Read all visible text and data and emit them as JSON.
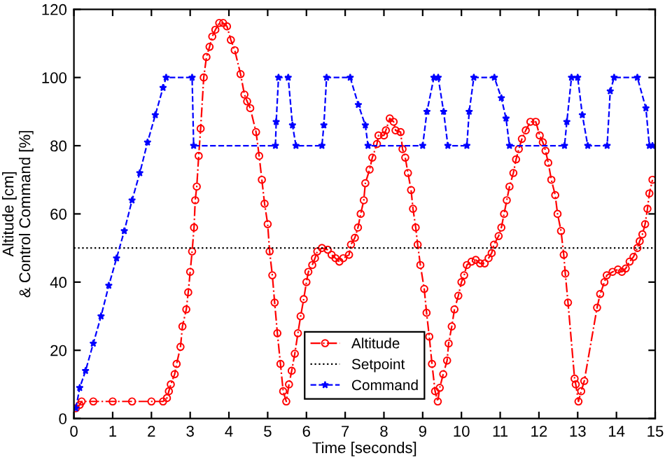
{
  "chart_data": {
    "type": "line",
    "xlabel": "Time [seconds]",
    "ylabel": "Altitude [cm]\n& Control Command [%]",
    "xlim": [
      0,
      15
    ],
    "xticks": [
      0,
      1,
      2,
      3,
      4,
      5,
      6,
      7,
      8,
      9,
      10,
      11,
      12,
      13,
      14,
      15
    ],
    "ylim": [
      0,
      120
    ],
    "yticks": [
      0,
      20,
      40,
      60,
      80,
      100,
      120
    ],
    "grid": false,
    "legend": "bottom",
    "series": [
      {
        "name": "Altitude",
        "color": "#ff0000",
        "marker": "circle",
        "line_style": "dashdot",
        "x": [
          0.05,
          0.15,
          0.2,
          0.5,
          1.0,
          1.5,
          2.0,
          2.3,
          2.4,
          2.45,
          2.5,
          2.6,
          2.65,
          2.75,
          2.8,
          2.9,
          2.95,
          3.0,
          3.05,
          3.1,
          3.13,
          3.17,
          3.22,
          3.27,
          3.35,
          3.42,
          3.5,
          3.57,
          3.65,
          3.75,
          3.85,
          3.95,
          4.05,
          4.15,
          4.3,
          4.4,
          4.47,
          4.55,
          4.7,
          4.78,
          4.85,
          4.92,
          5.0,
          5.05,
          5.12,
          5.18,
          5.25,
          5.33,
          5.4,
          5.48,
          5.55,
          5.62,
          5.7,
          5.78,
          5.85,
          5.93,
          6.0,
          6.05,
          6.15,
          6.22,
          6.28,
          6.4,
          6.55,
          6.65,
          6.75,
          6.85,
          6.95,
          7.1,
          7.15,
          7.25,
          7.33,
          7.4,
          7.48,
          7.52,
          7.63,
          7.7,
          7.82,
          7.86,
          8.0,
          8.05,
          8.15,
          8.25,
          8.3,
          8.43,
          8.48,
          8.55,
          8.62,
          8.7,
          8.75,
          8.82,
          8.87,
          8.94,
          9.04,
          9.1,
          9.17,
          9.24,
          9.32,
          9.39,
          9.44,
          9.53,
          9.63,
          9.67,
          9.75,
          9.82,
          9.92,
          10.0,
          10.07,
          10.14,
          10.26,
          10.37,
          10.48,
          10.6,
          10.7,
          10.78,
          10.84,
          10.96,
          11.03,
          11.1,
          11.17,
          11.24,
          11.34,
          11.41,
          11.48,
          11.56,
          11.66,
          11.78,
          11.92,
          12.02,
          12.1,
          12.17,
          12.24,
          12.32,
          12.42,
          12.48,
          12.57,
          12.64,
          12.68,
          12.75,
          12.92,
          12.95,
          13.02,
          13.09,
          13.17,
          13.5,
          13.58,
          13.69,
          13.75,
          13.9,
          14.04,
          14.14,
          14.24,
          14.34,
          14.44,
          14.54,
          14.6,
          14.67,
          14.74,
          14.8,
          14.85,
          14.93
        ],
        "values": [
          3,
          4,
          5,
          5,
          5,
          5,
          5,
          5,
          6,
          8,
          10,
          13,
          16,
          21,
          27,
          32,
          37,
          43,
          49,
          56,
          64,
          68,
          77,
          85,
          100,
          106,
          109,
          112,
          114,
          116,
          116,
          115,
          111,
          108,
          101,
          95,
          93,
          91,
          84,
          77,
          70,
          63,
          57,
          49,
          42,
          34,
          25,
          16,
          8,
          5,
          10,
          14,
          19,
          25,
          30,
          35,
          40,
          43,
          45,
          47,
          49,
          50,
          49.5,
          48,
          47,
          46,
          47,
          48,
          51,
          53,
          56,
          60,
          64,
          69,
          73,
          76.5,
          80.5,
          83,
          83,
          84.5,
          88,
          87,
          84.5,
          84,
          79,
          76.5,
          72,
          67,
          61.5,
          56,
          51,
          45,
          38,
          31,
          24,
          16,
          8,
          5,
          9,
          13,
          17,
          22,
          27,
          32,
          36,
          40,
          42,
          45,
          46,
          46.5,
          45.5,
          45.5,
          47,
          48.5,
          51,
          53.5,
          56,
          60,
          64,
          68,
          72,
          76,
          79,
          82,
          84.5,
          87,
          87,
          83,
          81,
          78.5,
          75,
          70,
          65.5,
          60,
          55,
          48,
          42.5,
          34,
          11.7,
          10,
          5,
          8,
          11,
          32.5,
          36.5,
          40,
          42,
          43,
          43.7,
          43,
          44,
          46,
          47.4,
          50,
          52,
          54,
          57,
          61.5,
          66,
          70
        ]
      },
      {
        "name": "Setpoint",
        "color": "#000000",
        "marker": "none",
        "line_style": "dotted",
        "x": [
          0,
          15
        ],
        "values": [
          50,
          50
        ]
      },
      {
        "name": "Command",
        "color": "#0000ff",
        "marker": "star",
        "line_style": "dashed",
        "x": [
          0.05,
          0.15,
          0.3,
          0.5,
          0.7,
          0.9,
          1.1,
          1.3,
          1.5,
          1.7,
          1.9,
          2.1,
          2.3,
          2.38,
          3.05,
          3.09,
          5.2,
          5.22,
          5.28,
          5.53,
          5.64,
          5.73,
          6.4,
          6.45,
          6.52,
          7.13,
          7.34,
          7.52,
          7.59,
          9.0,
          9.11,
          9.29,
          9.4,
          9.54,
          9.65,
          10.14,
          10.2,
          10.32,
          10.85,
          11.03,
          11.15,
          11.24,
          12.66,
          12.72,
          12.84,
          13.0,
          13.12,
          13.26,
          13.76,
          13.84,
          13.94,
          14.54,
          14.76,
          14.85,
          14.93
        ],
        "values": [
          3,
          9,
          14,
          22,
          30,
          39,
          47,
          55,
          64,
          72,
          81,
          89,
          97,
          100,
          100,
          80,
          80,
          87,
          100,
          100,
          86,
          80,
          80,
          86,
          100,
          100,
          92,
          86,
          80,
          80,
          90,
          100,
          100,
          90,
          80,
          80,
          90,
          100,
          100,
          94,
          88,
          80,
          80,
          87,
          100,
          100,
          89,
          80,
          80,
          96,
          100,
          100,
          91,
          80,
          80
        ]
      }
    ]
  }
}
